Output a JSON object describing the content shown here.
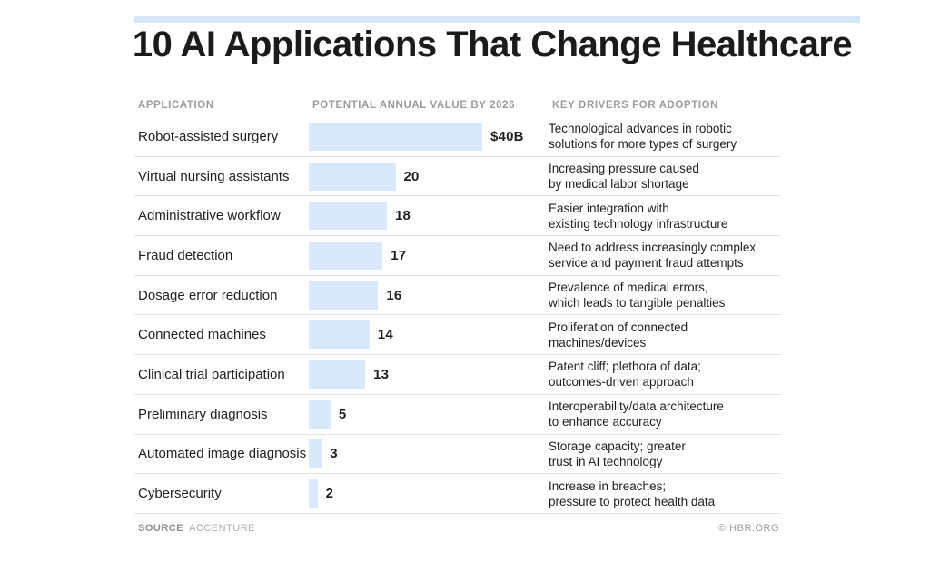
{
  "title": "10 AI Applications That Change Healthcare",
  "colors": {
    "bar_fill": "#d9e9fb",
    "accent_strip": "#d6e5f8",
    "header_text": "#9b9b9b",
    "body_text": "#1f1f1f",
    "separator": "#e2e2e2"
  },
  "table": {
    "headers": [
      "APPLICATION",
      "POTENTIAL ANNUAL VALUE BY 2026",
      "KEY DRIVERS FOR ADOPTION"
    ],
    "max_value": 40,
    "rows": [
      {
        "application": "Robot-assisted surgery",
        "value": 40,
        "value_label": "$40B",
        "driver": "Technological advances in robotic\nsolutions for more types of surgery"
      },
      {
        "application": "Virtual nursing assistants",
        "value": 20,
        "value_label": "20",
        "driver": "Increasing pressure caused\nby medical labor shortage"
      },
      {
        "application": "Administrative workflow",
        "value": 18,
        "value_label": "18",
        "driver": "Easier integration with\nexisting technology infrastructure"
      },
      {
        "application": "Fraud detection",
        "value": 17,
        "value_label": "17",
        "driver": "Need to address increasingly complex\nservice and payment fraud attempts"
      },
      {
        "application": "Dosage error reduction",
        "value": 16,
        "value_label": "16",
        "driver": "Prevalence of medical errors,\nwhich leads to tangible penalties"
      },
      {
        "application": "Connected machines",
        "value": 14,
        "value_label": "14",
        "driver": "Proliferation of connected\nmachines/devices"
      },
      {
        "application": "Clinical trial participation",
        "value": 13,
        "value_label": "13",
        "driver": "Patent cliff; plethora of data;\noutcomes-driven approach"
      },
      {
        "application": "Preliminary diagnosis",
        "value": 5,
        "value_label": "5",
        "driver": "Interoperability/data architecture\nto enhance accuracy"
      },
      {
        "application": "Automated image diagnosis",
        "value": 3,
        "value_label": "3",
        "driver": "Storage capacity; greater\ntrust in AI technology"
      },
      {
        "application": "Cybersecurity",
        "value": 2,
        "value_label": "2",
        "driver": "Increase in breaches;\npressure to protect health data"
      }
    ]
  },
  "footer": {
    "source_label": "SOURCE",
    "source_value": "ACCENTURE",
    "credit": "© HBR.ORG"
  },
  "chart_data": {
    "type": "bar",
    "orientation": "horizontal",
    "title": "10 AI Applications That Change Healthcare",
    "categories": [
      "Robot-assisted surgery",
      "Virtual nursing assistants",
      "Administrative workflow",
      "Fraud detection",
      "Dosage error reduction",
      "Connected machines",
      "Clinical trial participation",
      "Preliminary diagnosis",
      "Automated image diagnosis",
      "Cybersecurity"
    ],
    "values": [
      40,
      20,
      18,
      17,
      16,
      14,
      13,
      5,
      3,
      2
    ],
    "value_labels": [
      "$40B",
      "20",
      "18",
      "17",
      "16",
      "14",
      "13",
      "5",
      "3",
      "2"
    ],
    "xlabel": "POTENTIAL ANNUAL VALUE BY 2026",
    "ylabel": "APPLICATION",
    "xlim": [
      0,
      40
    ],
    "grid": false,
    "legend": false,
    "annotations": [
      "Technological advances in robotic solutions for more types of surgery",
      "Increasing pressure caused by medical labor shortage",
      "Easier integration with existing technology infrastructure",
      "Need to address increasingly complex service and payment fraud attempts",
      "Prevalence of medical errors, which leads to tangible penalties",
      "Proliferation of connected machines/devices",
      "Patent cliff; plethora of data; outcomes-driven approach",
      "Interoperability/data architecture to enhance accuracy",
      "Storage capacity; greater trust in AI technology",
      "Increase in breaches; pressure to protect health data"
    ]
  }
}
